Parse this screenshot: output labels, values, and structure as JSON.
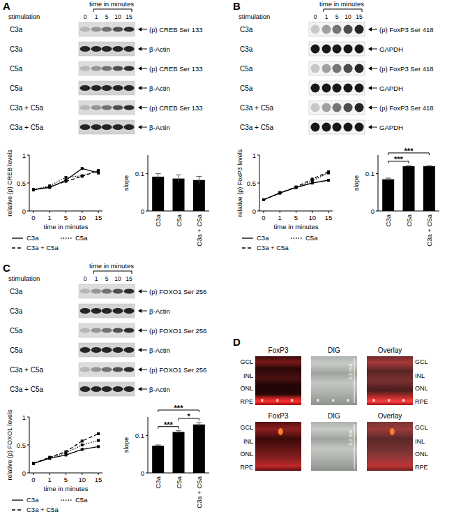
{
  "panels": [
    {
      "letter": "A",
      "stimulation_header": "stimulation",
      "time_header": "time in minutes",
      "times": [
        0,
        1,
        5,
        10,
        15
      ],
      "blots": [
        {
          "stimulation": "C3a",
          "target": "(p) CREB Ser 133"
        },
        {
          "stimulation": "C3a",
          "target": "β-Actin"
        },
        {
          "stimulation": "C5a",
          "target": "(p) CREB Ser 133"
        },
        {
          "stimulation": "C5a",
          "target": "β-Actin"
        },
        {
          "stimulation": "C3a + C5a",
          "target": "(p) CREB Ser 133"
        },
        {
          "stimulation": "C3a + C5a",
          "target": "β-Actin"
        }
      ]
    },
    {
      "letter": "B",
      "stimulation_header": "stimulation",
      "time_header": "time in minutes",
      "times": [
        0,
        1,
        5,
        10,
        15
      ],
      "blots": [
        {
          "stimulation": "C3a",
          "target": "(p) FoxP3 Ser 418"
        },
        {
          "stimulation": "C3a",
          "target": "GAPDH"
        },
        {
          "stimulation": "C5a",
          "target": "(p) FoxP3 Ser 418"
        },
        {
          "stimulation": "C5a",
          "target": "GAPDH"
        },
        {
          "stimulation": "C3a + C5a",
          "target": "(p) FoxP3 Ser 418"
        },
        {
          "stimulation": "C3a + C5a",
          "target": "GAPDH"
        }
      ]
    },
    {
      "letter": "C",
      "stimulation_header": "stimulation",
      "time_header": "time in minutes",
      "times": [
        0,
        1,
        5,
        10,
        15
      ],
      "blots": [
        {
          "stimulation": "C3a",
          "target": "(p) FOXO1 Ser 256"
        },
        {
          "stimulation": "C3a",
          "target": "β-Actin"
        },
        {
          "stimulation": "C5a",
          "target": "(p) FOXO1 Ser 256"
        },
        {
          "stimulation": "C5a",
          "target": "β-Actin"
        },
        {
          "stimulation": "C3a + C5a",
          "target": "(p) FOXO1 Ser 256"
        },
        {
          "stimulation": "C3a + C5a",
          "target": "β-Actin"
        }
      ]
    }
  ],
  "panel_d": {
    "letter": "D",
    "columns": [
      "FoxP3",
      "DIG",
      "Overlay"
    ],
    "layers": [
      "GCL",
      "INL",
      "ONL",
      "RPE"
    ],
    "scale_bar": "0.2 mm",
    "marker": "*"
  },
  "chart_data": [
    {
      "type": "line",
      "x_label": "time in minutes",
      "y_label": "relative (p) CREB levels",
      "categories": [
        "0",
        "1",
        "5",
        "10",
        "15"
      ],
      "ylim": [
        0,
        1
      ],
      "yticks": [
        0,
        0.5,
        1
      ],
      "legend": "bottom",
      "series": [
        {
          "name": "C3a",
          "color": "#000000",
          "line_style": "solid",
          "marker": "square",
          "values": [
            0.38,
            0.42,
            0.55,
            0.76,
            0.68
          ]
        },
        {
          "name": "C5a",
          "color": "#000000",
          "line_style": "dotted",
          "marker": "square",
          "values": [
            0.38,
            0.45,
            0.6,
            0.63,
            0.72
          ]
        },
        {
          "name": "C3a + C5a",
          "color": "#000000",
          "line_style": "dashed",
          "marker": "square",
          "values": [
            0.38,
            0.43,
            0.53,
            0.62,
            0.72
          ]
        }
      ]
    },
    {
      "type": "bar",
      "y_label": "slope",
      "categories": [
        "C3a",
        "C5a",
        "C3a + C5a"
      ],
      "values": [
        0.092,
        0.087,
        0.083
      ],
      "errors": [
        0.008,
        0.01,
        0.01
      ],
      "color": "#000000",
      "ylim": [
        0,
        0.15
      ],
      "yticks": [
        0,
        0.1
      ]
    },
    {
      "type": "line",
      "x_label": "time in minutes",
      "y_label": "relative (p) FoxP3 levels",
      "categories": [
        "0",
        "1",
        "5",
        "10",
        "15"
      ],
      "ylim": [
        0,
        1
      ],
      "yticks": [
        0,
        0.5,
        1
      ],
      "legend": "bottom",
      "series": [
        {
          "name": "C3a",
          "color": "#000000",
          "line_style": "solid",
          "marker": "square",
          "values": [
            0.2,
            0.32,
            0.42,
            0.5,
            0.55
          ]
        },
        {
          "name": "C5a",
          "color": "#000000",
          "line_style": "dotted",
          "marker": "square",
          "values": [
            0.2,
            0.33,
            0.42,
            0.54,
            0.68
          ]
        },
        {
          "name": "C3a + C5a",
          "color": "#000000",
          "line_style": "dashed",
          "marker": "square",
          "values": [
            0.2,
            0.32,
            0.43,
            0.57,
            0.7
          ]
        }
      ]
    },
    {
      "type": "bar",
      "y_label": "slope",
      "categories": [
        "C3a",
        "C5a",
        "C3a + C5a"
      ],
      "values": [
        0.085,
        0.12,
        0.12
      ],
      "errors": [
        0.003,
        0.002,
        0.002
      ],
      "color": "#000000",
      "ylim": [
        0,
        0.15
      ],
      "yticks": [
        0,
        0.1
      ],
      "significance": [
        {
          "from": 0,
          "to": 1,
          "label": "***"
        },
        {
          "from": 0,
          "to": 2,
          "label": "***"
        }
      ]
    },
    {
      "type": "line",
      "x_label": "time in minutes",
      "y_label": "relative (p) FOXO1 levels",
      "categories": [
        "0",
        "1",
        "5",
        "10",
        "15"
      ],
      "ylim": [
        0,
        1
      ],
      "yticks": [
        0,
        0.5,
        1
      ],
      "legend": "bottom",
      "series": [
        {
          "name": "C3a",
          "color": "#000000",
          "line_style": "solid",
          "marker": "square",
          "values": [
            0.17,
            0.26,
            0.32,
            0.42,
            0.47
          ]
        },
        {
          "name": "C5a",
          "color": "#000000",
          "line_style": "dotted",
          "marker": "square",
          "values": [
            0.17,
            0.27,
            0.36,
            0.5,
            0.58
          ]
        },
        {
          "name": "C3a + C5a",
          "color": "#000000",
          "line_style": "dashed",
          "marker": "square",
          "values": [
            0.17,
            0.28,
            0.38,
            0.57,
            0.7
          ]
        }
      ]
    },
    {
      "type": "bar",
      "y_label": "slope",
      "categories": [
        "C3a",
        "C5a",
        "C3a + C5a"
      ],
      "values": [
        0.073,
        0.11,
        0.13
      ],
      "errors": [
        0.002,
        0.003,
        0.005
      ],
      "color": "#000000",
      "ylim": [
        0,
        0.15
      ],
      "yticks": [
        0,
        0.1
      ],
      "significance": [
        {
          "from": 0,
          "to": 1,
          "label": "***"
        },
        {
          "from": 0,
          "to": 2,
          "label": "***"
        },
        {
          "from": 1,
          "to": 2,
          "label": "*"
        }
      ]
    }
  ]
}
